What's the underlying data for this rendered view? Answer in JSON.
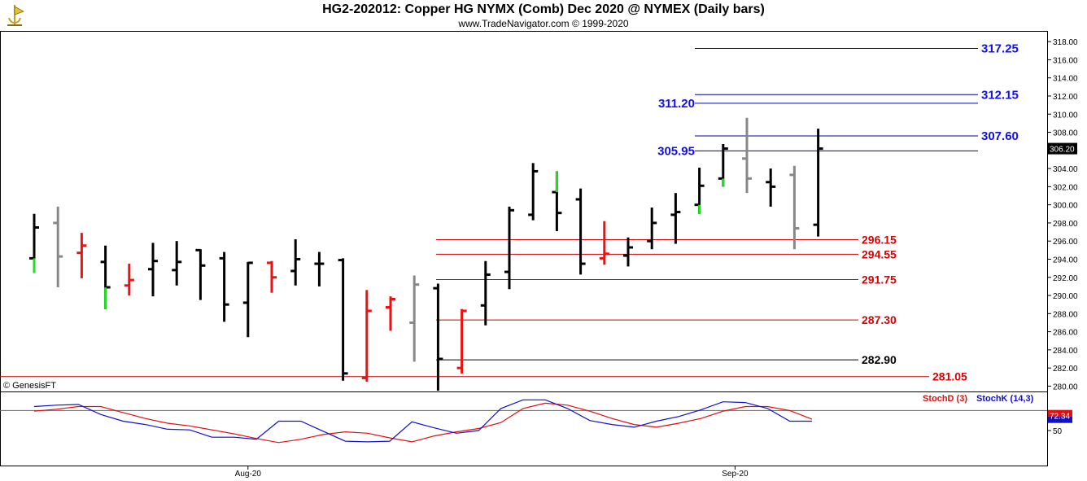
{
  "header": {
    "title": "HG2-202012:  Copper HG NYMX (Comb) Dec 2020 @ NYMEX  (Daily bars)",
    "subtitle": "www.TradeNavigator.com © 1999-2020"
  },
  "copyright": "© GenesisFT",
  "chart_data": [
    {
      "type": "ohlc",
      "title": "HG2-202012:  Copper HG NYMX (Comb) Dec 2020 @ NYMEX  (Daily bars)",
      "ylim": [
        279.5,
        319
      ],
      "yticks": [
        "318.00",
        "316.00",
        "314.00",
        "312.00",
        "310.00",
        "308.00",
        "306.00",
        "304.00",
        "302.00",
        "300.00",
        "298.00",
        "296.00",
        "294.00",
        "292.00",
        "290.00",
        "288.00",
        "286.00",
        "284.00",
        "282.00",
        "280.00"
      ],
      "last_price_label": "306.20",
      "x_ticks": [
        {
          "label": "Aug-20",
          "bar": 9
        },
        {
          "label": "Sep-20",
          "bar": 29.5
        }
      ],
      "colors": {
        "up": "#000000",
        "down": "#ee1111",
        "gray": "#888888",
        "green": "#22dd22"
      },
      "bars": [
        {
          "o": 294.1,
          "h": 299.0,
          "l": 292.5,
          "c": 297.5,
          "color": "black",
          "tail": "green"
        },
        {
          "o": 298.0,
          "h": 299.8,
          "l": 290.9,
          "c": 294.3,
          "color": "gray"
        },
        {
          "o": 294.7,
          "h": 296.9,
          "l": 291.9,
          "c": 295.5,
          "color": "red"
        },
        {
          "o": 293.7,
          "h": 295.5,
          "l": 288.5,
          "c": 290.9,
          "color": "black",
          "tail": "green"
        },
        {
          "o": 291.1,
          "h": 293.5,
          "l": 290.0,
          "c": 291.7,
          "color": "red"
        },
        {
          "o": 292.9,
          "h": 295.8,
          "l": 289.9,
          "c": 293.8,
          "color": "black"
        },
        {
          "o": 292.8,
          "h": 296.0,
          "l": 291.1,
          "c": 293.7,
          "color": "black"
        },
        {
          "o": 295.0,
          "h": 295.1,
          "l": 289.5,
          "c": 293.3,
          "color": "black"
        },
        {
          "o": 294.1,
          "h": 294.8,
          "l": 287.1,
          "c": 289.0,
          "color": "black"
        },
        {
          "o": 289.2,
          "h": 293.7,
          "l": 285.4,
          "c": 293.6,
          "color": "black"
        },
        {
          "o": 293.6,
          "h": 293.8,
          "l": 290.3,
          "c": 292.0,
          "color": "red"
        },
        {
          "o": 292.7,
          "h": 296.2,
          "l": 291.1,
          "c": 294.0,
          "color": "black"
        },
        {
          "o": 293.5,
          "h": 294.8,
          "l": 291.0,
          "c": 293.5,
          "color": "black"
        },
        {
          "o": 293.9,
          "h": 294.1,
          "l": 280.6,
          "c": 281.4,
          "color": "black"
        },
        {
          "o": 280.9,
          "h": 290.6,
          "l": 280.5,
          "c": 288.3,
          "color": "red"
        },
        {
          "o": 288.7,
          "h": 289.9,
          "l": 286.1,
          "c": 289.6,
          "color": "red"
        },
        {
          "o": 287.0,
          "h": 292.2,
          "l": 282.7,
          "c": 291.2,
          "color": "gray"
        },
        {
          "o": 290.8,
          "h": 291.3,
          "l": 279.5,
          "c": 283.0,
          "color": "black"
        },
        {
          "o": 282.0,
          "h": 288.5,
          "l": 281.4,
          "c": 288.3,
          "color": "red"
        },
        {
          "o": 288.9,
          "h": 293.8,
          "l": 286.7,
          "c": 292.3,
          "color": "black"
        },
        {
          "o": 292.6,
          "h": 299.8,
          "l": 290.7,
          "c": 299.4,
          "color": "black"
        },
        {
          "o": 298.9,
          "h": 304.6,
          "l": 298.3,
          "c": 303.7,
          "color": "black"
        },
        {
          "o": 301.4,
          "h": 303.7,
          "l": 297.1,
          "c": 299.1,
          "color": "black",
          "head": "green"
        },
        {
          "o": 300.6,
          "h": 301.8,
          "l": 292.3,
          "c": 293.5,
          "color": "black"
        },
        {
          "o": 294.1,
          "h": 298.2,
          "l": 293.4,
          "c": 294.6,
          "color": "red"
        },
        {
          "o": 294.4,
          "h": 296.4,
          "l": 293.2,
          "c": 295.3,
          "color": "black"
        },
        {
          "o": 296.0,
          "h": 299.7,
          "l": 295.1,
          "c": 298.0,
          "color": "black"
        },
        {
          "o": 298.9,
          "h": 301.3,
          "l": 295.7,
          "c": 299.2,
          "color": "black"
        },
        {
          "o": 300.0,
          "h": 304.1,
          "l": 299.0,
          "c": 302.1,
          "color": "black",
          "tail": "green"
        },
        {
          "o": 302.9,
          "h": 306.7,
          "l": 302.0,
          "c": 306.2,
          "color": "black",
          "tail": "green"
        },
        {
          "o": 305.1,
          "h": 309.6,
          "l": 301.3,
          "c": 302.9,
          "color": "gray"
        },
        {
          "o": 302.5,
          "h": 304.0,
          "l": 299.8,
          "c": 302.0,
          "color": "black"
        },
        {
          "o": 303.3,
          "h": 304.3,
          "l": 295.1,
          "c": 297.4,
          "color": "gray"
        },
        {
          "o": 297.8,
          "h": 308.4,
          "l": 296.5,
          "c": 306.2,
          "color": "black"
        }
      ],
      "levels_blue": [
        {
          "value": 317.25,
          "label": "317.25"
        },
        {
          "value": 312.15,
          "label": "312.15"
        },
        {
          "value": 311.2,
          "label": "311.20"
        },
        {
          "value": 307.6,
          "label": "307.60"
        },
        {
          "value": 305.95,
          "label": "305.95"
        }
      ],
      "levels_red": [
        {
          "value": 296.15,
          "label": "296.15",
          "color": "red"
        },
        {
          "value": 294.55,
          "label": "294.55",
          "color": "red"
        },
        {
          "value": 291.75,
          "label": "291.75",
          "color": "red"
        },
        {
          "value": 287.3,
          "label": "287.30",
          "color": "red"
        },
        {
          "value": 282.9,
          "label": "282.90",
          "color": "black"
        },
        {
          "value": 281.05,
          "label": "281.05",
          "color": "red"
        }
      ]
    },
    {
      "type": "line",
      "title": "Stochastic",
      "ylim": [
        0,
        100
      ],
      "yticks": [
        "50"
      ],
      "current_label": "72.34",
      "series": [
        {
          "name": "StochD (3)",
          "color": "#dd1111",
          "values": [
            79,
            82,
            86,
            86,
            77,
            68,
            61,
            57,
            51,
            45,
            38,
            32,
            37,
            44,
            48,
            46,
            39,
            33,
            42,
            48,
            53,
            62,
            83,
            91,
            88,
            79,
            68,
            59,
            55,
            61,
            68,
            79,
            86,
            86,
            80,
            67
          ]
        },
        {
          "name": "StochK (14,3)",
          "color": "#1111cc",
          "values": [
            86,
            88,
            89,
            74,
            64,
            59,
            52,
            51,
            40,
            40,
            37,
            64,
            64,
            49,
            34,
            33,
            34,
            63,
            54,
            46,
            50,
            83,
            96,
            96,
            83,
            65,
            59,
            55,
            64,
            71,
            81,
            93,
            92,
            83,
            64,
            64
          ]
        }
      ]
    }
  ]
}
